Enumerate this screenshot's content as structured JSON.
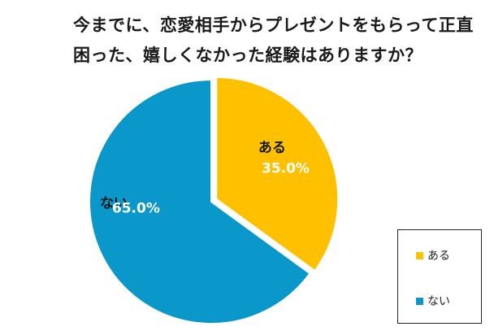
{
  "chart_data": {
    "type": "pie",
    "title": "今までに、恋愛相手からプレゼントをもらって正直困った、嬉しくなかった経験はありますか？",
    "title_lines": [
      "今までに、恋愛相手からプレゼントをもらって正直",
      "困った、嬉しくなかった経験はありますか？"
    ],
    "slices": [
      {
        "label": "ある",
        "value": 35.0,
        "value_label": "35.0%",
        "color": "#FFC000"
      },
      {
        "label": "ない",
        "value": 65.0,
        "value_label": "65.0%",
        "color": "#0A97C9"
      }
    ],
    "start_angle_deg": 0,
    "direction": "clockwise",
    "exploded": "ある",
    "legend_position": "bottom-right",
    "label_colors": {
      "category": "#1a1a1a",
      "value": "#ffffff"
    }
  }
}
